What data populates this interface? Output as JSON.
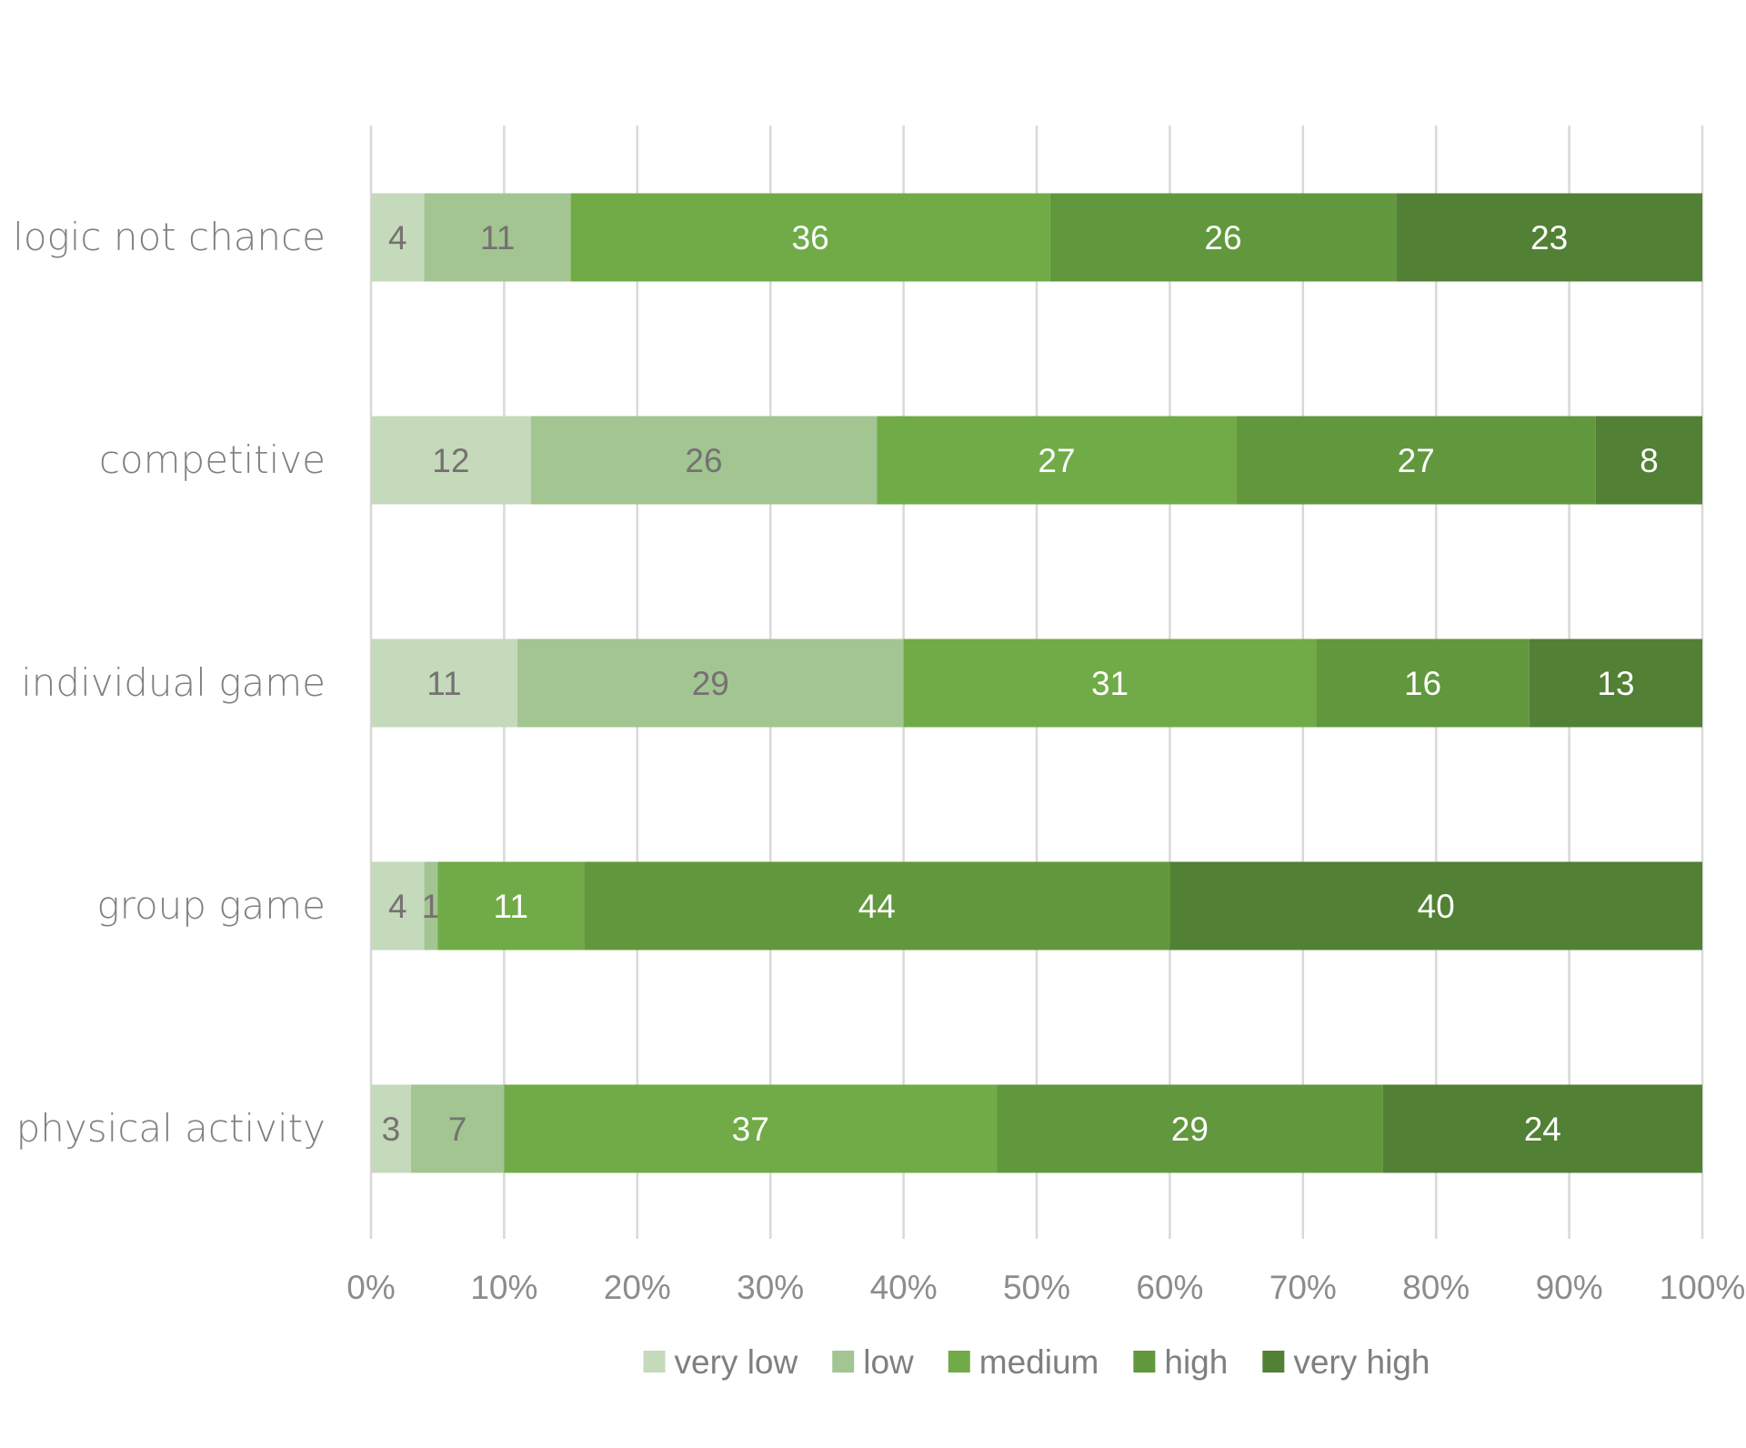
{
  "chart_data": {
    "type": "bar",
    "orientation": "horizontal",
    "stacked": "percent",
    "categories": [
      "logic not chance",
      "competitive",
      "individual game",
      "group game",
      "physical activity"
    ],
    "series": [
      {
        "name": "very low",
        "color": "#c5d9bb",
        "values": [
          4,
          12,
          11,
          4,
          3
        ]
      },
      {
        "name": "low",
        "color": "#a2c592",
        "values": [
          11,
          26,
          29,
          1,
          7
        ]
      },
      {
        "name": "medium",
        "color": "#70ab47",
        "values": [
          36,
          27,
          31,
          11,
          37
        ]
      },
      {
        "name": "high",
        "color": "#62983d",
        "values": [
          26,
          27,
          16,
          44,
          29
        ]
      },
      {
        "name": "very high",
        "color": "#528034",
        "values": [
          23,
          8,
          13,
          40,
          24
        ]
      }
    ],
    "xticks": [
      "0%",
      "10%",
      "20%",
      "30%",
      "40%",
      "50%",
      "60%",
      "70%",
      "80%",
      "90%",
      "100%"
    ],
    "xlim": [
      0,
      100
    ],
    "grid": "vertical",
    "legend_position": "bottom",
    "label_colors": {
      "dark": "#767171",
      "light": "#ffffff"
    }
  }
}
